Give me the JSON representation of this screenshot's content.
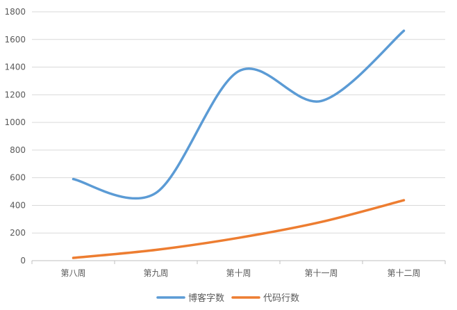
{
  "chart_data": {
    "type": "line",
    "categories": [
      "第八周",
      "第九周",
      "第十周",
      "第十一周",
      "第十二周"
    ],
    "series": [
      {
        "name": "博客字数",
        "values": [
          590,
          490,
          1370,
          1155,
          1663
        ],
        "color": "#5B9BD5"
      },
      {
        "name": "代码行数",
        "values": [
          20,
          78,
          165,
          280,
          437
        ],
        "color": "#ED7D31"
      }
    ],
    "y_ticks": [
      0,
      200,
      400,
      600,
      800,
      1000,
      1200,
      1400,
      1600,
      1800
    ],
    "y_tick_labels": [
      "0",
      "200",
      "400",
      "600",
      "800",
      "1000",
      "1200",
      "1400",
      "1600",
      "1800"
    ],
    "ylim": [
      0,
      1800
    ],
    "grid": true,
    "legend_position": "bottom",
    "gridline_color": "#D9D9D9",
    "axis_color": "#BFBFBF",
    "smooth": true
  }
}
